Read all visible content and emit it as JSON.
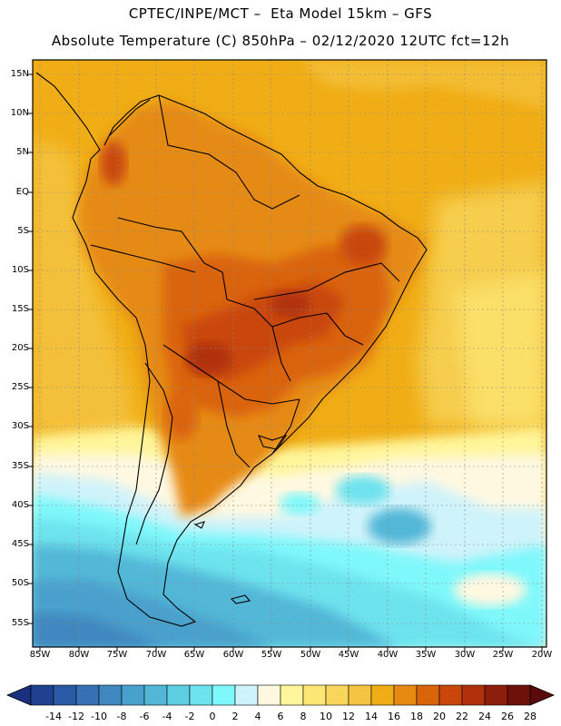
{
  "header": {
    "line1": "CPTEC/INPE/MCT –  Eta Model 15km – GFS",
    "line2": "Absolute Temperature (C) 850hPa – 02/12/2020 12UTC fct=12h"
  },
  "axes": {
    "lat_labels": [
      "15N",
      "10N",
      "5N",
      "EQ",
      "5S",
      "10S",
      "15S",
      "20S",
      "25S",
      "30S",
      "35S",
      "40S",
      "45S",
      "50S",
      "55S"
    ],
    "lon_labels": [
      "85W",
      "80W",
      "75W",
      "70W",
      "65W",
      "60W",
      "55W",
      "50W",
      "45W",
      "40W",
      "35W",
      "30W",
      "25W",
      "20W"
    ]
  },
  "colorbar": {
    "labels": [
      "-14",
      "-12",
      "-10",
      "-8",
      "-6",
      "-4",
      "-2",
      "0",
      "2",
      "4",
      "6",
      "8",
      "10",
      "12",
      "14",
      "16",
      "18",
      "20",
      "22",
      "24",
      "26",
      "28"
    ],
    "colors": [
      "#1f3f8f",
      "#2a5aa5",
      "#3671b3",
      "#3f87bf",
      "#48a0cc",
      "#52b7d7",
      "#5dcde2",
      "#6de3ee",
      "#7ff8fb",
      "#cff3fa",
      "#fff8e1",
      "#fff59a",
      "#fde774",
      "#f8d55b",
      "#f4c33f",
      "#f0ad15",
      "#e68a12",
      "#da6408",
      "#c9470b",
      "#b0300b",
      "#8d1d0c",
      "#6d110b"
    ]
  }
}
